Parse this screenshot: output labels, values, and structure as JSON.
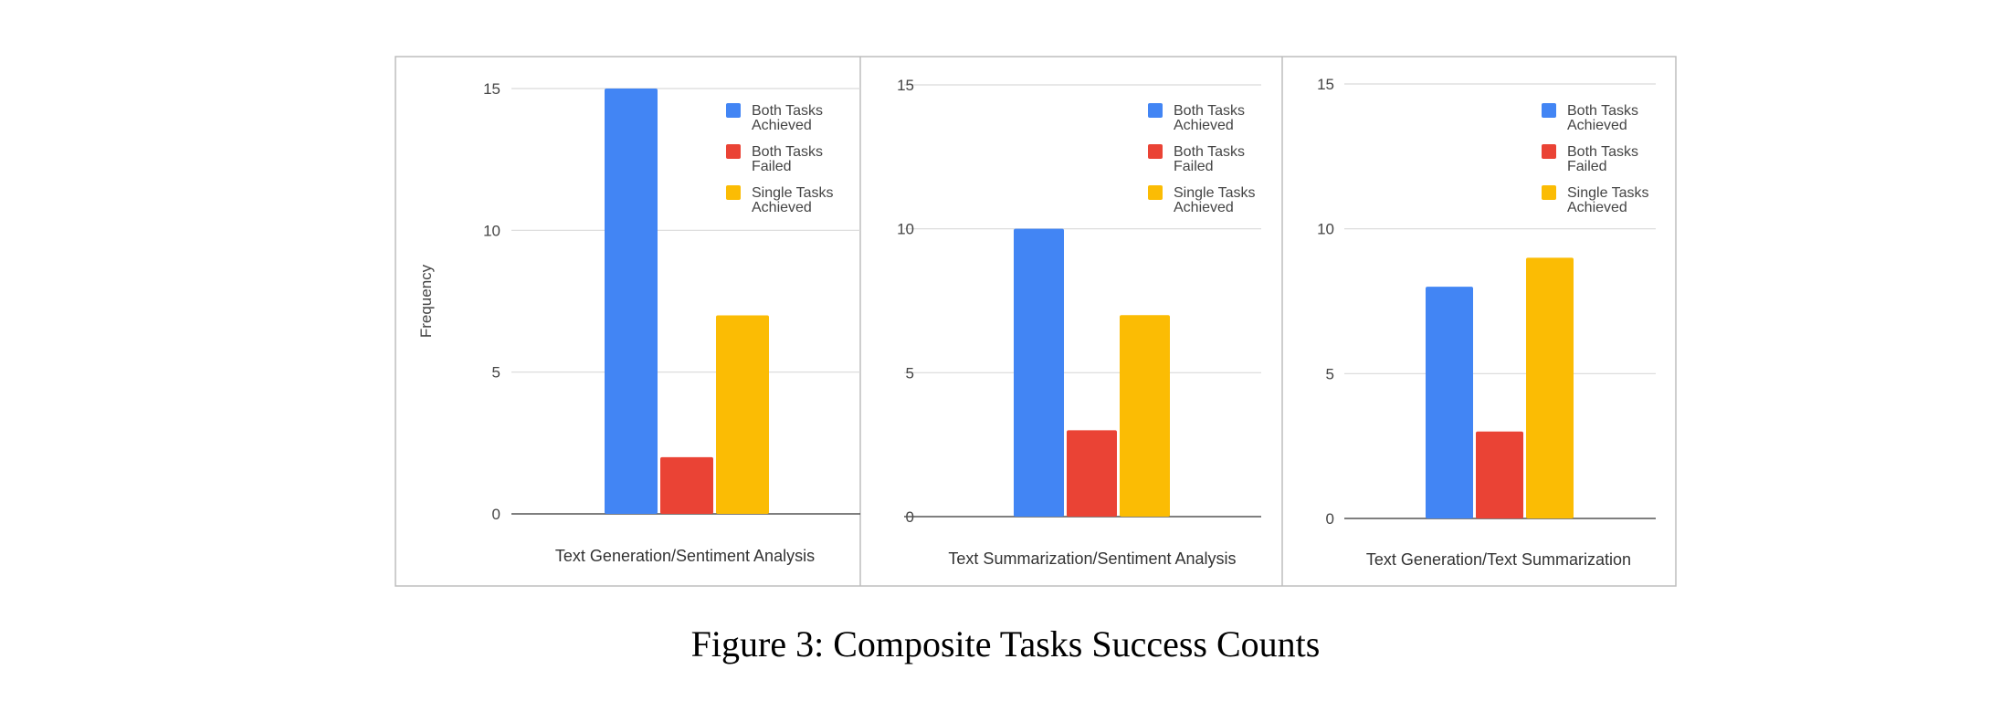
{
  "caption": "Figure 3: Composite Tasks Success Counts",
  "colors": {
    "both_achieved": "#4285F4",
    "both_failed": "#EA4335",
    "single_achieved": "#FBBC04"
  },
  "chart_data": [
    {
      "type": "bar",
      "xlabel": "Text Generation/Sentiment Analysis",
      "ylabel": "Frequency",
      "ylim": [
        0,
        15
      ],
      "yticks": [
        0,
        5,
        10,
        15
      ],
      "grid": true,
      "legend_position": "top-right",
      "series": [
        {
          "name": "Both Tasks Achieved",
          "value": 15
        },
        {
          "name": "Both Tasks Failed",
          "value": 2
        },
        {
          "name": "Single Tasks Achieved",
          "value": 7
        }
      ]
    },
    {
      "type": "bar",
      "xlabel": "Text Summarization/Sentiment Analysis",
      "ylabel": "",
      "ylim": [
        0,
        15
      ],
      "yticks": [
        0,
        5,
        10,
        15
      ],
      "grid": true,
      "legend_position": "top-right",
      "series": [
        {
          "name": "Both Tasks Achieved",
          "value": 10
        },
        {
          "name": "Both Tasks Failed",
          "value": 3
        },
        {
          "name": "Single Tasks Achieved",
          "value": 7
        }
      ]
    },
    {
      "type": "bar",
      "xlabel": "Text Generation/Text Summarization",
      "ylabel": "",
      "ylim": [
        0,
        15
      ],
      "yticks": [
        0,
        5,
        10,
        15
      ],
      "grid": true,
      "legend_position": "top-right",
      "series": [
        {
          "name": "Both Tasks Achieved",
          "value": 8
        },
        {
          "name": "Both Tasks Failed",
          "value": 3
        },
        {
          "name": "Single Tasks Achieved",
          "value": 9
        }
      ]
    }
  ]
}
